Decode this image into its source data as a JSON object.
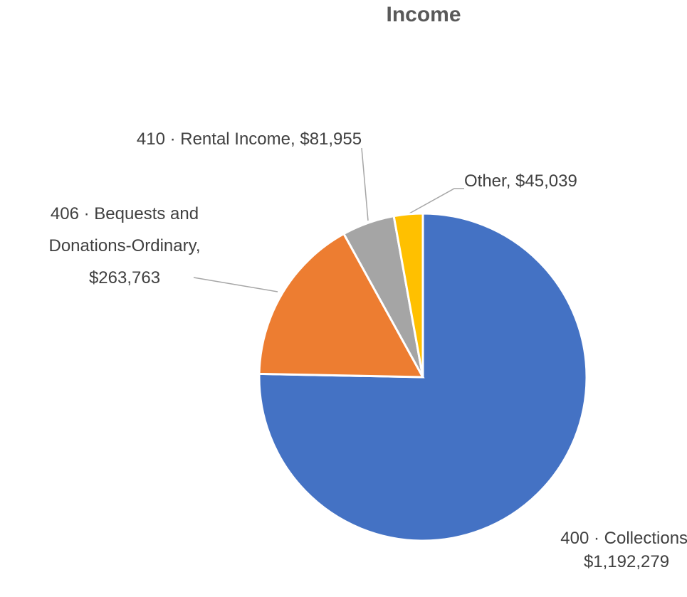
{
  "chart_data": {
    "type": "pie",
    "title": "Income",
    "categories": [
      "400 · Collections",
      "406 · Bequests and Donations-Ordinary",
      "410 · Rental Income",
      "Other"
    ],
    "values": [
      1192279,
      263763,
      81955,
      45039
    ],
    "value_labels": [
      "$1,192,279",
      "$263,763",
      "$81,955",
      "$45,039"
    ],
    "label_separator": ",",
    "colors": [
      "#4472c4",
      "#ed7d31",
      "#a5a5a5",
      "#ffc000"
    ]
  }
}
